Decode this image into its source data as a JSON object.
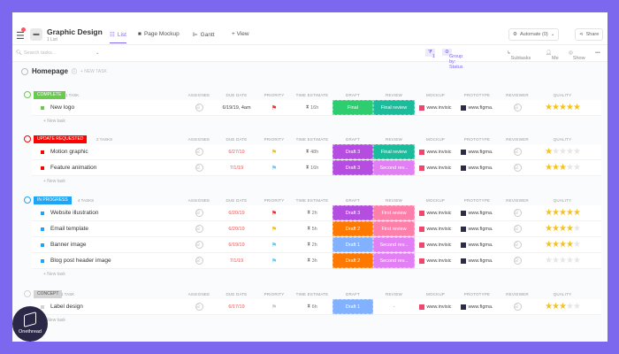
{
  "header": {
    "title": "Graphic Design",
    "subtitle": "1 List",
    "tabs": [
      {
        "label": "List",
        "icon": "list-icon"
      },
      {
        "label": "Page Mockup",
        "icon": "page-icon"
      },
      {
        "label": "Gantt",
        "icon": "gantt-icon"
      },
      {
        "label": "+ View",
        "icon": "plus-icon"
      }
    ],
    "automate": "Automate (0)",
    "share": "Share"
  },
  "toolbar": {
    "search_placeholder": "Search tasks...",
    "filter": "1",
    "group_by": "Group by: Status",
    "subtasks": "Subtasks",
    "me": "Me",
    "show": "Show",
    "more": "•••"
  },
  "list": {
    "name": "Homepage",
    "new_task": "+ NEW TASK"
  },
  "columns": [
    "ASSIGNEE",
    "DUE DATE",
    "PRIORITY",
    "TIME ESTIMATE",
    "DRAFT",
    "REVIEW",
    "MOCKUP",
    "PROTOTYPE",
    "REVIEWER",
    "QUALITY"
  ],
  "new_task_label": "+ New task",
  "colors": {
    "accent": "#7b68ee",
    "complete": "#6bc950",
    "update": "#f00",
    "progress": "#1fa5f5",
    "concept": "#d3d3d3",
    "urgent": "#f42c2c",
    "high": "#f7bd1b",
    "normal": "#6fc6f8",
    "low": "#ccc"
  },
  "groups": [
    {
      "status": "COMPLETE",
      "count": "1 TASK",
      "color": "#6bc950",
      "tasks": [
        {
          "name": "New logo",
          "due": "6/19/19, 4am",
          "priority": "urgent",
          "time": "16h",
          "draft": "Final",
          "draft_color": "#2ecd6f",
          "review": "Final review",
          "review_color": "#1bbc9c",
          "mockup": "www.invisic",
          "prototype": "www.figma.",
          "quality": 5
        }
      ]
    },
    {
      "status": "UPDATE REQUESTED",
      "count": "2 TASKS",
      "color": "#f00",
      "tasks": [
        {
          "name": "Motion graphic",
          "due": "6/27/19",
          "priority": "high",
          "time": "48h",
          "draft": "Draft 3",
          "draft_color": "#b54ee0",
          "review": "Final review",
          "review_color": "#1bbc9c",
          "mockup": "www.invisic",
          "prototype": "www.figma.",
          "quality": 1
        },
        {
          "name": "Feature animation",
          "due": "7/1/19",
          "priority": "normal",
          "time": "16h",
          "draft": "Draft 3",
          "draft_color": "#b54ee0",
          "review": "Second rev...",
          "review_color": "#e27ff5",
          "mockup": "www.invisic",
          "prototype": "www.figma.",
          "quality": 3
        }
      ]
    },
    {
      "status": "IN PROGRESS",
      "count": "4 TASKS",
      "color": "#1fa5f5",
      "tasks": [
        {
          "name": "Website illustration",
          "due": "6/20/19",
          "priority": "urgent",
          "time": "2h",
          "draft": "Draft 3",
          "draft_color": "#b54ee0",
          "review": "First review",
          "review_color": "#ff7fab",
          "mockup": "www.invisic",
          "prototype": "www.figma.",
          "quality": 5
        },
        {
          "name": "Email template",
          "due": "6/20/19",
          "priority": "high",
          "time": "5h",
          "draft": "Draft 2",
          "draft_color": "#ff7800",
          "review": "First review",
          "review_color": "#ff7fab",
          "mockup": "www.invisic",
          "prototype": "www.figma.",
          "quality": 4
        },
        {
          "name": "Banner image",
          "due": "6/19/19",
          "priority": "normal",
          "time": "2h",
          "draft": "Draft 1",
          "draft_color": "#81b1ff",
          "review": "Second rev...",
          "review_color": "#e27ff5",
          "mockup": "www.invisic",
          "prototype": "www.figma.",
          "quality": 4
        },
        {
          "name": "Blog post header image",
          "due": "7/1/19",
          "priority": "normal",
          "time": "3h",
          "draft": "Draft 2",
          "draft_color": "#ff7800",
          "review": "Second rev...",
          "review_color": "#e27ff5",
          "mockup": "www.invisic",
          "prototype": "www.figma.",
          "quality": 0
        }
      ]
    },
    {
      "status": "CONCEPT",
      "count": "1 TASK",
      "color": "#d3d3d3",
      "tasks": [
        {
          "name": "Label design",
          "due": "6/17/19",
          "priority": "low",
          "time": "6h",
          "draft": "Draft 1",
          "draft_color": "#81b1ff",
          "review": "-",
          "review_color": "",
          "mockup": "www.invisic",
          "prototype": "www.figma.",
          "quality": 3
        }
      ]
    }
  ],
  "watermark": "Onethread"
}
